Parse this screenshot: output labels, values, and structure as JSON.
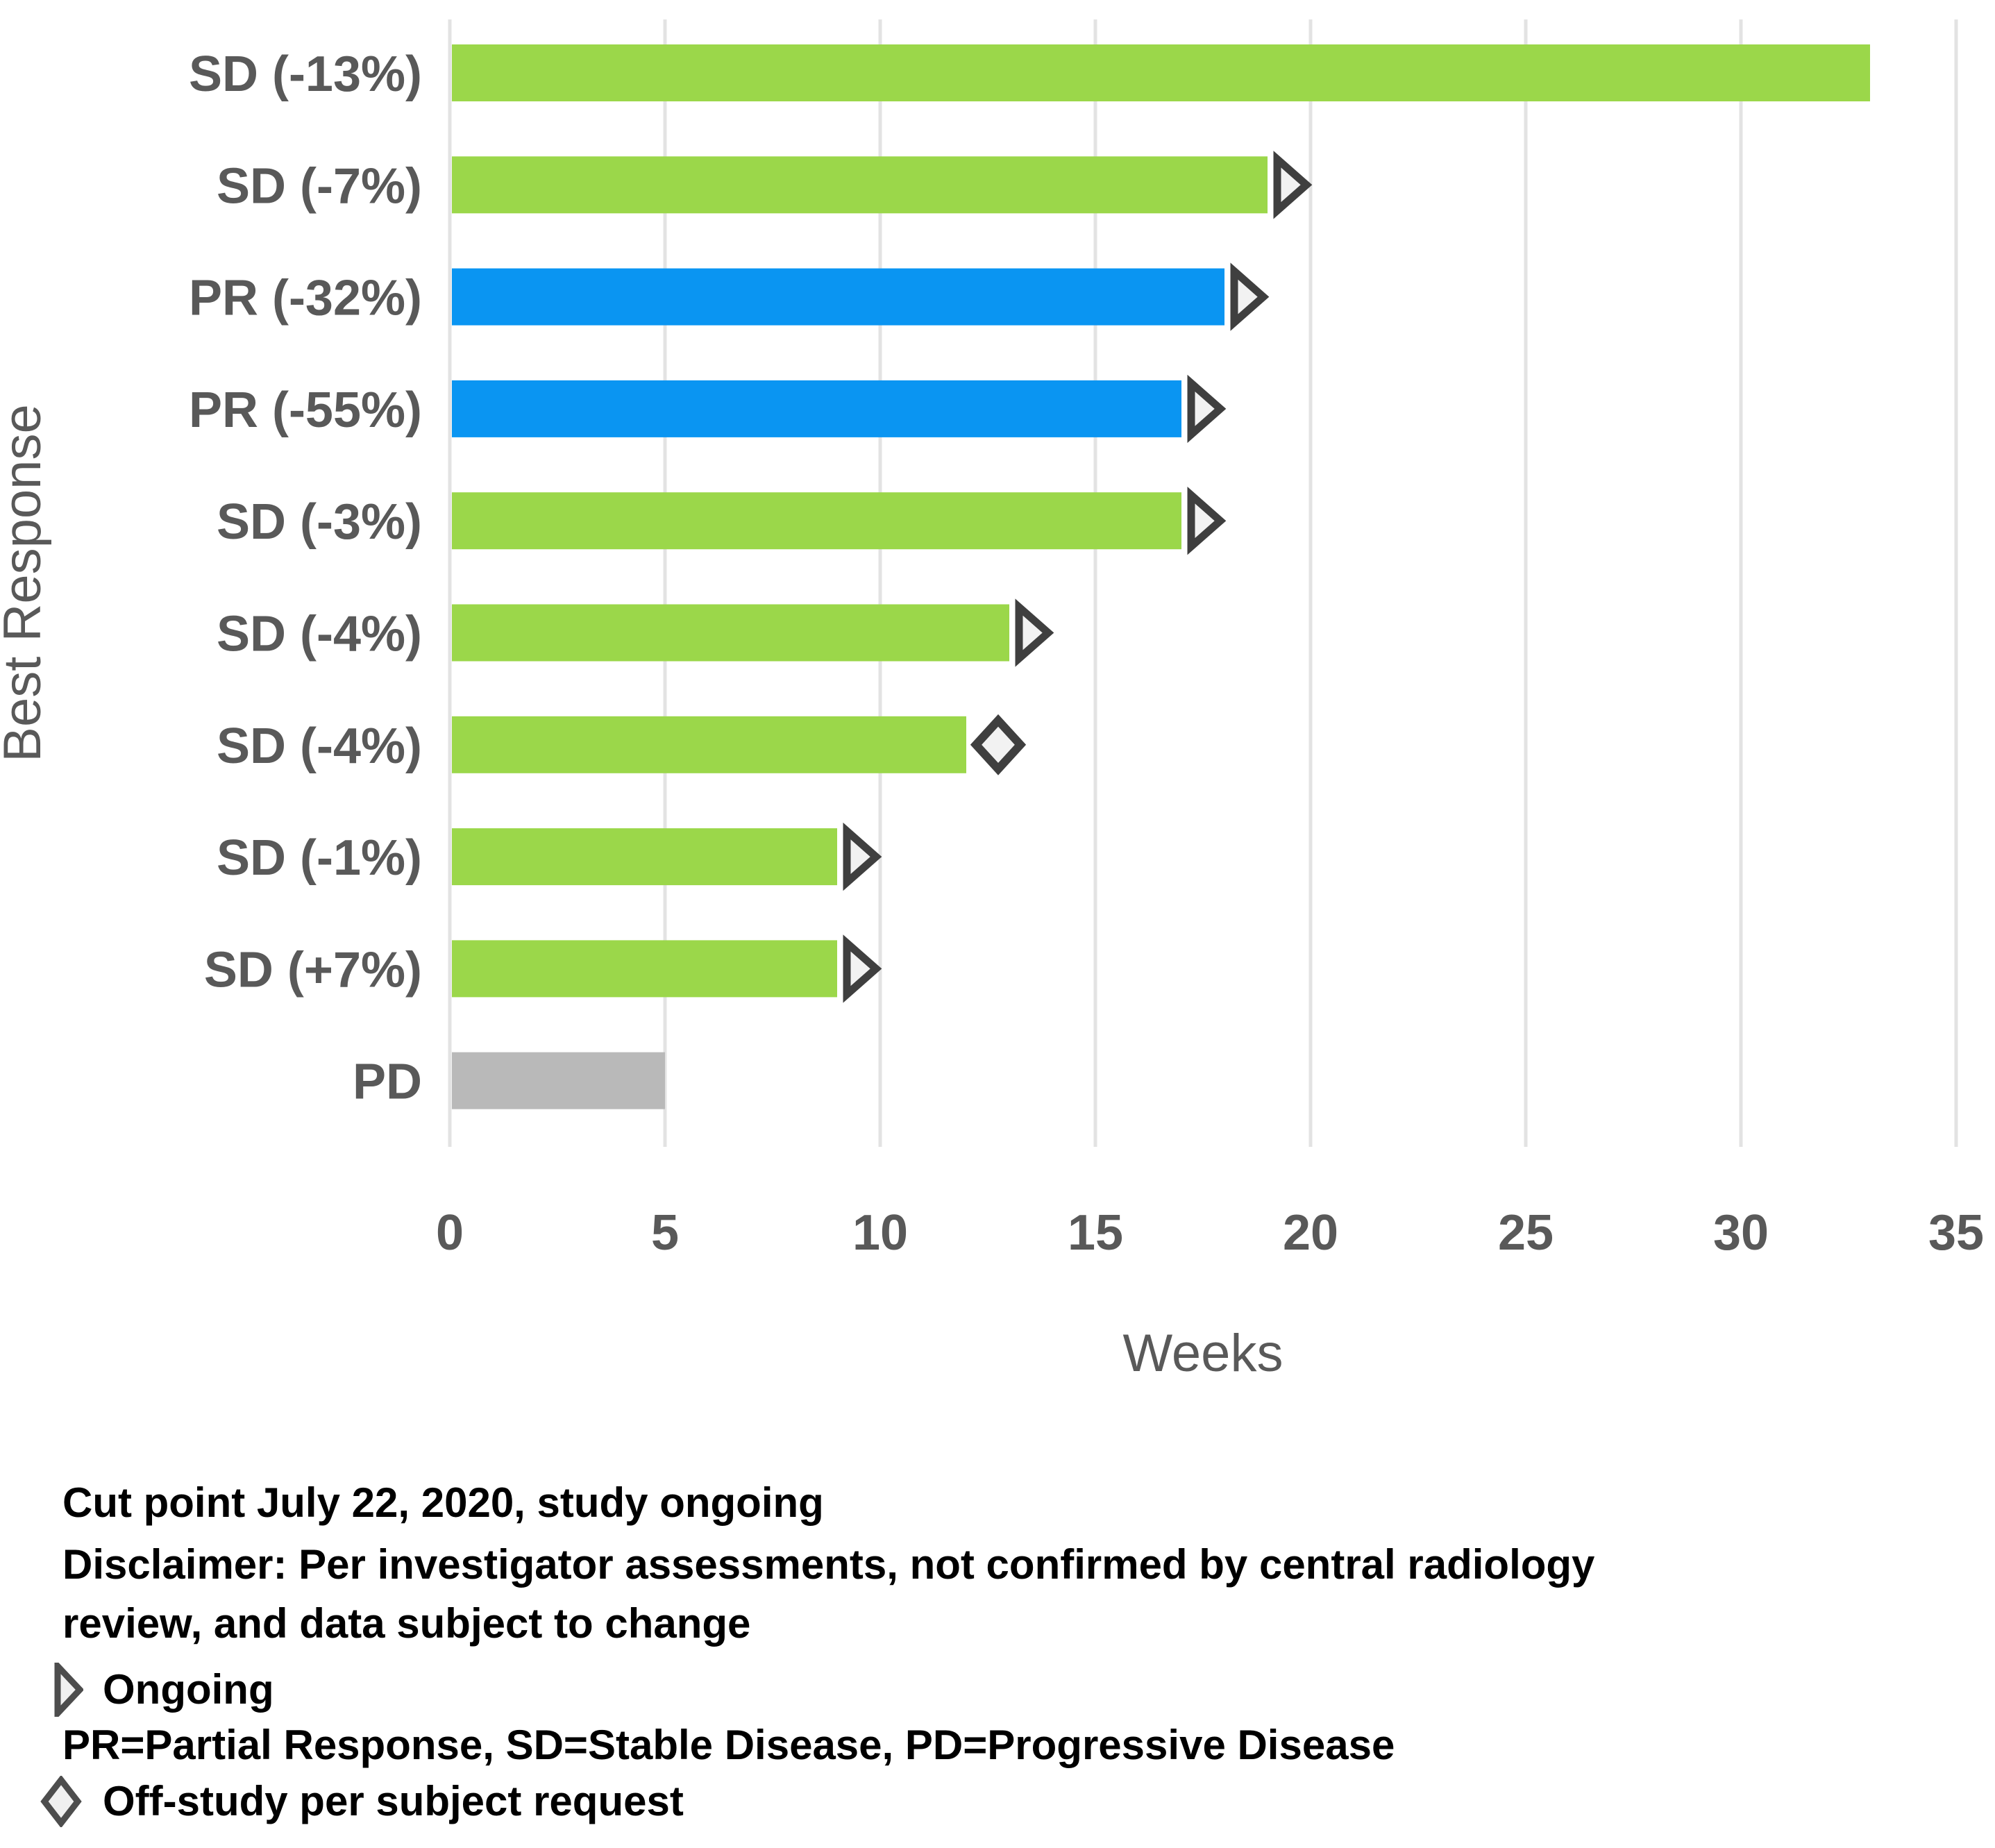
{
  "page": {
    "background": "#ffffff"
  },
  "chart_data": {
    "type": "bar",
    "orientation": "horizontal",
    "title": "",
    "xlabel": "Weeks",
    "ylabel": "Best Response",
    "xlim": [
      0,
      35
    ],
    "xticks": [
      0,
      5,
      10,
      15,
      20,
      25,
      30,
      35
    ],
    "grid": true,
    "legend_position": "none",
    "categories": [
      "SD (-13%)",
      "SD (-7%)",
      "PR (-32%)",
      "PR (-55%)",
      "SD (-3%)",
      "SD (-4%)",
      "SD (-4%)",
      "SD (-1%)",
      "SD (+7%)",
      "PD"
    ],
    "values_weeks": [
      33,
      19,
      18,
      17,
      17,
      13,
      12,
      9,
      9,
      5
    ],
    "bar_colors": [
      "green",
      "green",
      "blue",
      "blue",
      "green",
      "green",
      "green",
      "green",
      "green",
      "gray"
    ],
    "end_markers": [
      null,
      "ongoing",
      "ongoing",
      "ongoing",
      "ongoing",
      "ongoing",
      "off_study",
      "ongoing",
      "ongoing",
      null
    ],
    "marker_meanings": {
      "ongoing": "Ongoing",
      "off_study": "Off-study per subject request"
    },
    "palette": {
      "green": "#9BD74A",
      "blue": "#0A95F2",
      "gray": "#B9B9B9",
      "marker_fill": "#F2F2F2",
      "marker_stroke": "#3F3F3F",
      "grid": "#E3E3E3",
      "axis_text": "#595959"
    }
  },
  "footer": {
    "cut_point": "Cut point July 22, 2020, study ongoing",
    "disclaimer_line1": "Disclaimer: Per investigator assessments, not confirmed by central radiology",
    "disclaimer_line2": "review, and data subject to change",
    "ongoing_legend": "Ongoing",
    "abbreviations": "PR=Partial Response, SD=Stable Disease, PD=Progressive Disease",
    "off_study_legend": "Off-study per subject request"
  }
}
